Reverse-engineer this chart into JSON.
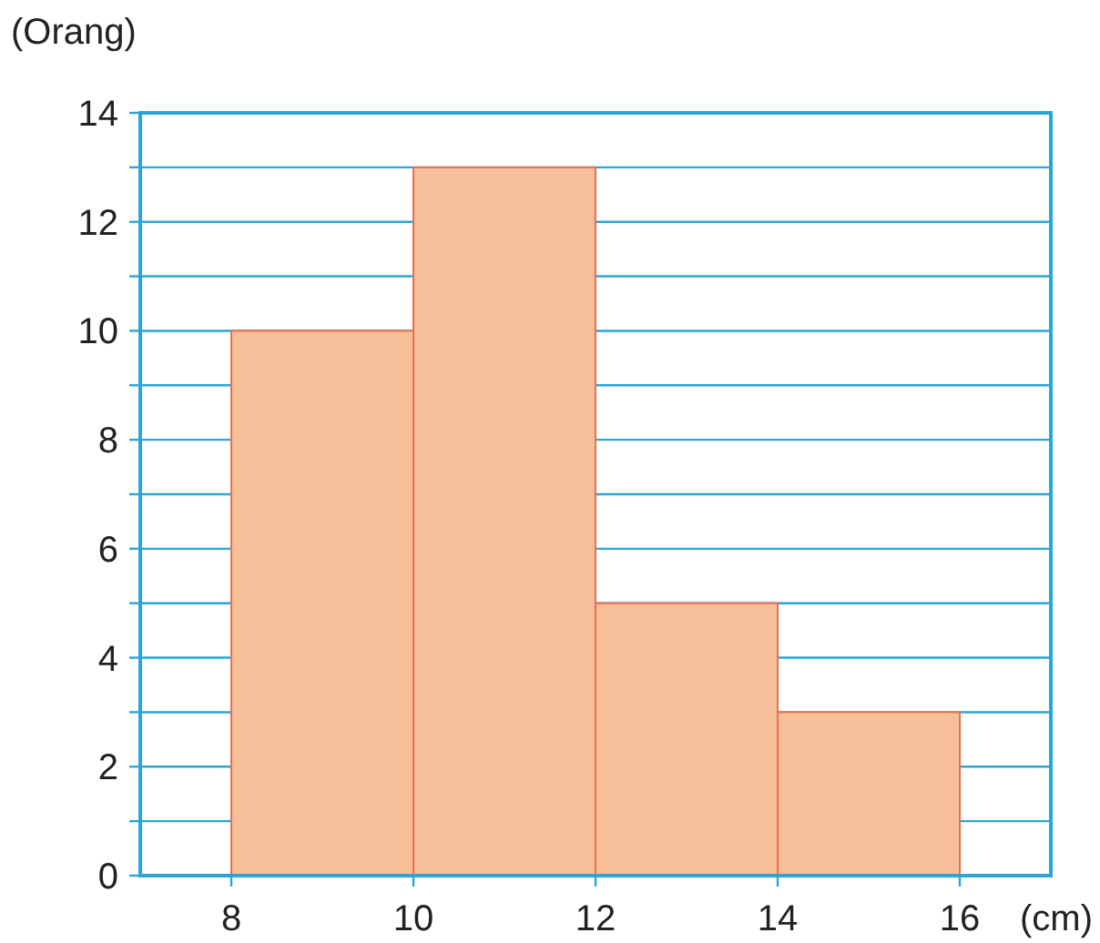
{
  "chart_data": {
    "type": "histogram",
    "xlabel": "(cm)",
    "ylabel": "(Orang)",
    "bins": [
      8,
      10,
      12,
      14,
      16
    ],
    "values": [
      10,
      13,
      5,
      3
    ],
    "color": "#f8bf9b",
    "xlim": [
      7,
      17
    ],
    "xticks": [
      8,
      10,
      12,
      14,
      16
    ],
    "ylim": [
      0,
      14
    ],
    "yticks": [
      0,
      {
        "value": 1,
        "label": null
      },
      2,
      {
        "value": 3,
        "label": null
      },
      4,
      {
        "value": 5,
        "label": null
      },
      6,
      {
        "value": 7,
        "label": null
      },
      8,
      {
        "value": 9,
        "label": null
      },
      10,
      {
        "value": 11,
        "label": null
      },
      12,
      {
        "value": 13,
        "label": null
      },
      14
    ],
    "grid": "y"
  }
}
